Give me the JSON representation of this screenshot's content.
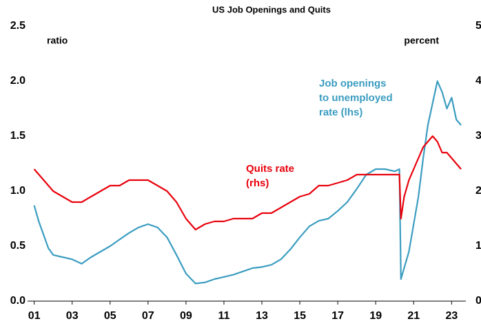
{
  "chart_data": {
    "type": "line",
    "title": "US Job Openings and Quits",
    "ylabel": "ratio",
    "y2label": "percent",
    "xlim": [
      2000.65,
      2023.75
    ],
    "xticks": [
      {
        "value": 2001,
        "label": "01"
      },
      {
        "value": 2003,
        "label": "03"
      },
      {
        "value": 2005,
        "label": "05"
      },
      {
        "value": 2007,
        "label": "07"
      },
      {
        "value": 2009,
        "label": "09"
      },
      {
        "value": 2011,
        "label": "11"
      },
      {
        "value": 2013,
        "label": "13"
      },
      {
        "value": 2015,
        "label": "15"
      },
      {
        "value": 2017,
        "label": "17"
      },
      {
        "value": 2019,
        "label": "19"
      },
      {
        "value": 2021,
        "label": "21"
      },
      {
        "value": 2023,
        "label": "23"
      }
    ],
    "ylim": [
      0,
      2.5
    ],
    "yticks": [
      {
        "value": 0,
        "label": "0.0"
      },
      0.5,
      {
        "value": 1,
        "label": "1.0"
      },
      1.5,
      {
        "value": 2,
        "label": "2.0"
      },
      2.5
    ],
    "y2lim": [
      0,
      5
    ],
    "y2ticks": [
      0,
      1,
      2,
      3,
      4,
      5
    ],
    "series": [
      {
        "label_lines": [
          "Job openings",
          "to unemployed",
          "rate (lhs)"
        ],
        "color": "#3a9cc0",
        "axis": "y",
        "x": [
          2001,
          2001.25,
          2001.5,
          2001.75,
          2002,
          2002.5,
          2003,
          2003.5,
          2004,
          2004.5,
          2005,
          2005.5,
          2006,
          2006.5,
          2007,
          2007.5,
          2008,
          2008.5,
          2009,
          2009.5,
          2010,
          2010.5,
          2011,
          2011.5,
          2012,
          2012.5,
          2013,
          2013.5,
          2014,
          2014.5,
          2015,
          2015.5,
          2016,
          2016.5,
          2017,
          2017.5,
          2018,
          2018.5,
          2019,
          2019.5,
          2020,
          2020.25,
          2020.33,
          2020.75,
          2021,
          2021.25,
          2021.5,
          2021.75,
          2022,
          2022.25,
          2022.5,
          2022.75,
          2023,
          2023.25,
          2023.5
        ],
        "values": [
          0.87,
          0.72,
          0.6,
          0.48,
          0.42,
          0.4,
          0.38,
          0.34,
          0.4,
          0.45,
          0.5,
          0.56,
          0.62,
          0.67,
          0.7,
          0.67,
          0.58,
          0.42,
          0.25,
          0.16,
          0.17,
          0.2,
          0.22,
          0.24,
          0.27,
          0.3,
          0.31,
          0.33,
          0.38,
          0.47,
          0.58,
          0.68,
          0.73,
          0.75,
          0.82,
          0.9,
          1.02,
          1.15,
          1.2,
          1.2,
          1.18,
          1.2,
          0.2,
          0.45,
          0.7,
          0.95,
          1.3,
          1.6,
          1.8,
          2.0,
          1.9,
          1.75,
          1.85,
          1.65,
          1.6
        ]
      },
      {
        "label_lines": [
          "Quits rate",
          "(rhs)"
        ],
        "color": "#e8000b",
        "axis": "y2",
        "x": [
          2001,
          2001.5,
          2002,
          2002.5,
          2003,
          2003.5,
          2004,
          2004.5,
          2005,
          2005.5,
          2006,
          2006.5,
          2007,
          2007.5,
          2008,
          2008.5,
          2009,
          2009.5,
          2010,
          2010.5,
          2011,
          2011.5,
          2012,
          2012.5,
          2013,
          2013.5,
          2014,
          2014.5,
          2015,
          2015.5,
          2016,
          2016.5,
          2017,
          2017.5,
          2018,
          2018.5,
          2019,
          2019.5,
          2020,
          2020.25,
          2020.33,
          2020.5,
          2020.75,
          2021,
          2021.25,
          2021.5,
          2021.75,
          2022,
          2022.25,
          2022.5,
          2022.75,
          2023,
          2023.25,
          2023.5
        ],
        "values": [
          2.4,
          2.2,
          2.0,
          1.9,
          1.8,
          1.8,
          1.9,
          2.0,
          2.1,
          2.1,
          2.2,
          2.2,
          2.2,
          2.1,
          2.0,
          1.8,
          1.5,
          1.3,
          1.4,
          1.45,
          1.45,
          1.5,
          1.5,
          1.5,
          1.6,
          1.6,
          1.7,
          1.8,
          1.9,
          1.95,
          2.1,
          2.1,
          2.15,
          2.2,
          2.3,
          2.3,
          2.3,
          2.3,
          2.3,
          2.3,
          1.5,
          1.9,
          2.2,
          2.4,
          2.6,
          2.8,
          2.9,
          3.0,
          2.9,
          2.7,
          2.7,
          2.6,
          2.5,
          2.4
        ]
      }
    ]
  }
}
